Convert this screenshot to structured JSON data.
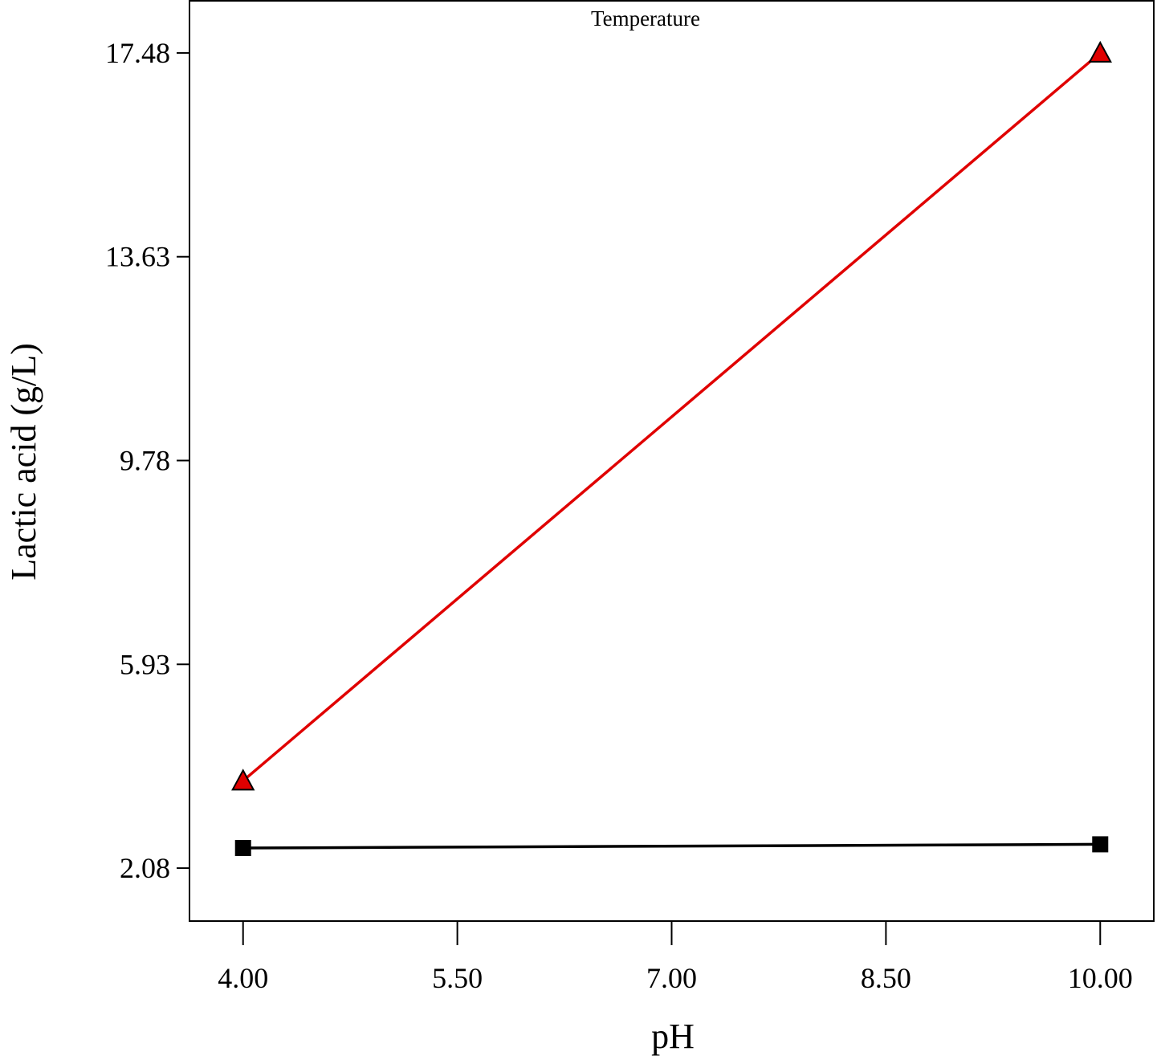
{
  "chart_data": {
    "type": "line",
    "annotation": "Temperature",
    "x_label": "pH",
    "y_label": "Lactic acid (g/L)",
    "x": [
      4,
      10
    ],
    "series": [
      {
        "color": "#e00000",
        "marker": "triangle",
        "values": [
          3.73,
          17.48
        ]
      },
      {
        "color": "#000000",
        "marker": "square",
        "values": [
          2.46,
          2.53
        ]
      }
    ],
    "xlim": [
      3.625,
      10.375
    ],
    "ylim": [
      1.08,
      18.48
    ],
    "xticks": [
      {
        "value": 4,
        "label": "4.00"
      },
      {
        "value": 5.5,
        "label": "5.50"
      },
      {
        "value": 7,
        "label": "7.00"
      },
      {
        "value": 8.5,
        "label": "8.50"
      },
      {
        "value": 10,
        "label": "10.00"
      }
    ],
    "yticks": [
      2.08,
      5.93,
      9.78,
      13.63,
      17.48
    ]
  }
}
